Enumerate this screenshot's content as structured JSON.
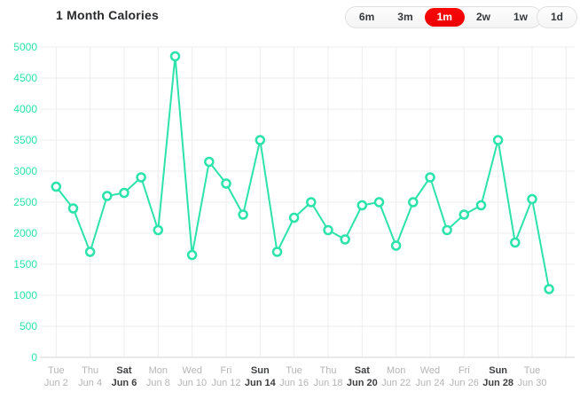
{
  "header": {
    "title": "1 Month Calories",
    "range_buttons": [
      {
        "label": "6m",
        "selected": false
      },
      {
        "label": "3m",
        "selected": false
      },
      {
        "label": "1m",
        "selected": true
      },
      {
        "label": "2w",
        "selected": false
      },
      {
        "label": "1w",
        "selected": false
      }
    ],
    "day_button": {
      "label": "1d",
      "selected": false
    }
  },
  "colors": {
    "accent_teal": "#2be3ab",
    "selected_red": "#f50506",
    "grid": "#ededed",
    "baseline": "#d6d6d6",
    "tick_gray": "#b5b5b5",
    "tick_dark": "#3e3f41",
    "title_dark": "#27292b"
  },
  "chart_data": {
    "type": "line",
    "title": "1 Month Calories",
    "ylabel": "",
    "xlabel": "",
    "ylim": [
      0,
      5000
    ],
    "y_ticks": [
      0,
      500,
      1000,
      1500,
      2000,
      2500,
      3000,
      3500,
      4000,
      4500,
      5000
    ],
    "grid": true,
    "marker": "circle-open",
    "x": [
      "Jun 2",
      "Jun 3",
      "Jun 4",
      "Jun 5",
      "Jun 6",
      "Jun 7",
      "Jun 8",
      "Jun 9",
      "Jun 10",
      "Jun 11",
      "Jun 12",
      "Jun 13",
      "Jun 14",
      "Jun 15",
      "Jun 16",
      "Jun 17",
      "Jun 18",
      "Jun 19",
      "Jun 20",
      "Jun 21",
      "Jun 22",
      "Jun 23",
      "Jun 24",
      "Jun 25",
      "Jun 26",
      "Jun 27",
      "Jun 28",
      "Jun 29",
      "Jun 30",
      "Jul 1"
    ],
    "values": [
      2750,
      2400,
      1700,
      2600,
      2650,
      2900,
      2050,
      4850,
      1650,
      3150,
      2800,
      2300,
      3500,
      1700,
      2250,
      2500,
      2050,
      1900,
      2450,
      2500,
      1800,
      2500,
      2900,
      2050,
      2300,
      2450,
      3500,
      1850,
      2550,
      1100
    ],
    "x_tick_labels": [
      {
        "day": "Tue",
        "date": "Jun 2",
        "bold": false
      },
      {
        "day": "Thu",
        "date": "Jun 4",
        "bold": false
      },
      {
        "day": "Sat",
        "date": "Jun 6",
        "bold": true
      },
      {
        "day": "Mon",
        "date": "Jun 8",
        "bold": false
      },
      {
        "day": "Wed",
        "date": "Jun 10",
        "bold": false
      },
      {
        "day": "Fri",
        "date": "Jun 12",
        "bold": false
      },
      {
        "day": "Sun",
        "date": "Jun 14",
        "bold": true
      },
      {
        "day": "Tue",
        "date": "Jun 16",
        "bold": false
      },
      {
        "day": "Thu",
        "date": "Jun 18",
        "bold": false
      },
      {
        "day": "Sat",
        "date": "Jun 20",
        "bold": true
      },
      {
        "day": "Mon",
        "date": "Jun 22",
        "bold": false
      },
      {
        "day": "Wed",
        "date": "Jun 24",
        "bold": false
      },
      {
        "day": "Fri",
        "date": "Jun 26",
        "bold": false
      },
      {
        "day": "Sun",
        "date": "Jun 28",
        "bold": true
      },
      {
        "day": "Tue",
        "date": "Jun 30",
        "bold": false
      }
    ],
    "legend": []
  }
}
